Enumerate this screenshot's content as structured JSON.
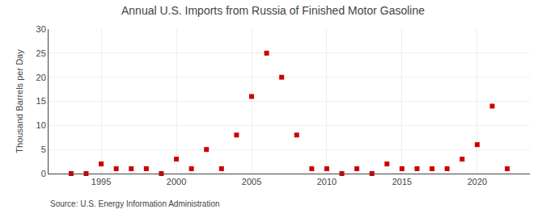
{
  "chart_data": {
    "type": "scatter",
    "title": "Annual U.S. Imports from Russia of Finished Motor Gasoline",
    "ylabel": "Thousand Barrels per Day",
    "source": "Source: U.S. Energy Information Administration",
    "x": [
      1993,
      1994,
      1995,
      1996,
      1997,
      1998,
      1999,
      2000,
      2001,
      2002,
      2003,
      2004,
      2005,
      2006,
      2007,
      2008,
      2009,
      2010,
      2011,
      2012,
      2013,
      2014,
      2015,
      2016,
      2017,
      2018,
      2019,
      2020,
      2021,
      2022
    ],
    "values": [
      0,
      0,
      2,
      1,
      1,
      1,
      0,
      3,
      1,
      5,
      1,
      8,
      16,
      25,
      20,
      8,
      1,
      1,
      0,
      1,
      0,
      2,
      1,
      1,
      1,
      1,
      3,
      6,
      14,
      1
    ],
    "color": "#cc0000",
    "marker": "square",
    "xlim": [
      1991.5,
      2023.5
    ],
    "xticks": [
      1995,
      2000,
      2005,
      2010,
      2015,
      2020
    ],
    "ylim": [
      0,
      30
    ],
    "yticks": [
      0,
      5,
      10,
      15,
      20,
      25,
      30
    ],
    "grid": true
  }
}
